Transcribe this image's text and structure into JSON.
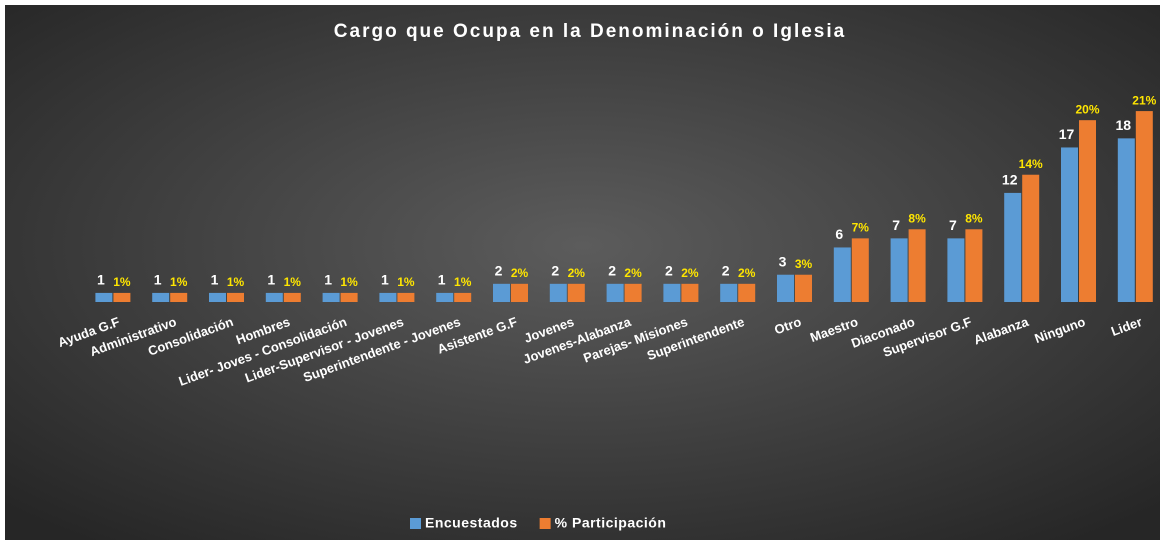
{
  "chart_data": {
    "type": "bar",
    "title": "Cargo que Ocupa  en la Denominación  o Iglesia",
    "categories": [
      "Ayuda G.F",
      "Administrativo",
      "Consolidación",
      "Hombres",
      "Lider- Joves - Consolidación",
      "Lider-Supervisor - Jovenes",
      "Superintendente - Jovenes",
      "Asistente G.F",
      "Jovenes",
      "Jovenes-Alabanza",
      "Parejas- Misiones",
      "Superintendente",
      "Otro",
      "Maestro",
      "Diaconado",
      "Supervisor G.F",
      "Alabanza",
      "Ninguno",
      "Lider"
    ],
    "series": [
      {
        "name": "Encuestados",
        "color": "#5b9bd5",
        "values": [
          1,
          1,
          1,
          1,
          1,
          1,
          1,
          2,
          2,
          2,
          2,
          2,
          3,
          6,
          7,
          7,
          12,
          17,
          18
        ]
      },
      {
        "name": "% Participación",
        "color": "#ed7d31",
        "values": [
          1,
          1,
          1,
          1,
          1,
          1,
          1,
          2,
          2,
          2,
          2,
          2,
          3,
          7,
          8,
          8,
          14,
          20,
          21
        ],
        "value_labels": [
          "1%",
          "1%",
          "1%",
          "1%",
          "1%",
          "1%",
          "1%",
          "2%",
          "2%",
          "2%",
          "2%",
          "2%",
          "3%",
          "7%",
          "8%",
          "8%",
          "14%",
          "20%",
          "21%"
        ]
      }
    ],
    "ylim": [
      0,
      22
    ],
    "legend": "bottom"
  }
}
